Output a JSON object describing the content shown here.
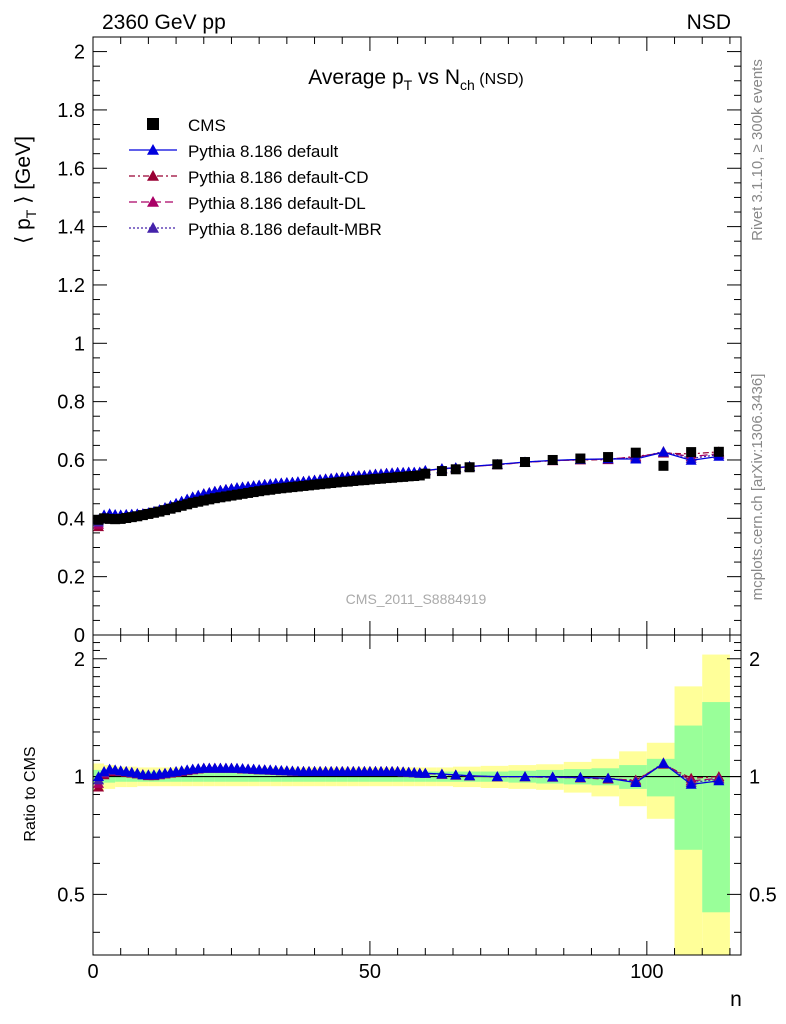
{
  "header": {
    "left": "2360 GeV pp",
    "right": "NSD"
  },
  "side_labels": {
    "rivet": "Rivet 3.1.10, ≥ 300k events",
    "mcplots": "mcplots.cern.ch [arXiv:1306.3436]"
  },
  "chart_data": {
    "type": "scatter",
    "title_main": "Average p",
    "title_sub1": "T",
    "title_mid": " vs N",
    "title_sub2": "ch",
    "title_tail": " (NSD)",
    "ylabel_pre": "⟨ p",
    "ylabel_sub": "T",
    "ylabel_post": " ⟩ [GeV]",
    "xlabel": "n",
    "ratio_ylabel": "Ratio to CMS",
    "watermark": "CMS_2011_S8884919",
    "xlim": [
      0,
      117
    ],
    "ylim": [
      0,
      2.05
    ],
    "x_ticks": [
      "0",
      "50",
      "100"
    ],
    "y_ticks": [
      "0",
      "0.2",
      "0.4",
      "0.6",
      "0.8",
      "1",
      "1.2",
      "1.4",
      "1.6",
      "1.8",
      "2"
    ],
    "ratio_ticks": [
      "0.5",
      "1",
      "2"
    ],
    "ratio_ylim": [
      0.35,
      2.3
    ],
    "colors": {
      "cms": "#000000",
      "default": "#0000dd",
      "cd": "#990033",
      "dl": "#aa0066",
      "mbr": "#4422aa",
      "band_inner": "#99ff99",
      "band_outer": "#ffff99"
    },
    "legend": [
      "CMS",
      "Pythia 8.186 default",
      "Pythia 8.186 default-CD",
      "Pythia 8.186 default-DL",
      "Pythia 8.186 default-MBR"
    ],
    "cms": {
      "x": [
        1,
        2,
        3,
        4,
        5,
        6,
        7,
        8,
        9,
        10,
        11,
        12,
        13,
        14,
        15,
        16,
        17,
        18,
        19,
        20,
        21,
        22,
        23,
        24,
        25,
        26,
        27,
        28,
        29,
        30,
        31,
        32,
        33,
        34,
        35,
        36,
        37,
        38,
        39,
        40,
        41,
        42,
        43,
        44,
        45,
        46,
        47,
        48,
        49,
        50,
        51,
        52,
        53,
        54,
        55,
        56,
        57,
        58,
        59,
        60,
        63,
        65.5,
        68,
        73,
        78,
        83,
        88,
        93,
        98,
        103,
        108,
        113
      ],
      "y": [
        0.395,
        0.4,
        0.398,
        0.397,
        0.398,
        0.401,
        0.404,
        0.407,
        0.411,
        0.415,
        0.419,
        0.423,
        0.428,
        0.433,
        0.438,
        0.443,
        0.448,
        0.453,
        0.457,
        0.461,
        0.465,
        0.469,
        0.472,
        0.475,
        0.478,
        0.481,
        0.484,
        0.487,
        0.49,
        0.493,
        0.496,
        0.498,
        0.501,
        0.503,
        0.505,
        0.507,
        0.509,
        0.511,
        0.513,
        0.515,
        0.517,
        0.519,
        0.521,
        0.523,
        0.525,
        0.526,
        0.528,
        0.53,
        0.531,
        0.533,
        0.535,
        0.536,
        0.538,
        0.539,
        0.541,
        0.542,
        0.544,
        0.545,
        0.547,
        0.553,
        0.562,
        0.568,
        0.575,
        0.585,
        0.593,
        0.6,
        0.605,
        0.61,
        0.625,
        0.58,
        0.627,
        0.628
      ]
    },
    "ratio_band": {
      "x_edges": [
        0,
        2,
        4,
        6,
        8,
        10,
        12,
        14,
        16,
        18,
        20,
        22,
        24,
        26,
        28,
        30,
        32,
        34,
        36,
        38,
        40,
        42,
        44,
        46,
        48,
        50,
        52,
        54,
        56,
        58,
        60,
        62,
        65,
        70,
        75,
        80,
        85,
        90,
        95,
        100,
        105,
        110,
        115
      ],
      "inner": [
        0.04,
        0.035,
        0.03,
        0.03,
        0.03,
        0.03,
        0.03,
        0.03,
        0.03,
        0.03,
        0.03,
        0.03,
        0.03,
        0.03,
        0.03,
        0.03,
        0.03,
        0.03,
        0.03,
        0.03,
        0.03,
        0.03,
        0.03,
        0.03,
        0.03,
        0.03,
        0.03,
        0.03,
        0.03,
        0.03,
        0.03,
        0.03,
        0.03,
        0.03,
        0.035,
        0.04,
        0.045,
        0.05,
        0.07,
        0.11,
        0.35,
        0.55
      ],
      "outer": [
        0.08,
        0.07,
        0.06,
        0.06,
        0.055,
        0.055,
        0.055,
        0.055,
        0.055,
        0.055,
        0.055,
        0.055,
        0.055,
        0.055,
        0.055,
        0.055,
        0.055,
        0.055,
        0.055,
        0.055,
        0.055,
        0.055,
        0.055,
        0.055,
        0.055,
        0.055,
        0.055,
        0.055,
        0.055,
        0.055,
        0.055,
        0.055,
        0.06,
        0.065,
        0.07,
        0.075,
        0.09,
        0.11,
        0.16,
        0.22,
        0.7,
        1.05
      ]
    },
    "pythia_ratio": {
      "x": [
        1,
        2,
        3,
        4,
        5,
        6,
        7,
        8,
        9,
        10,
        11,
        12,
        13,
        14,
        15,
        16,
        17,
        18,
        19,
        20,
        21,
        22,
        23,
        24,
        25,
        26,
        27,
        28,
        29,
        30,
        31,
        32,
        33,
        34,
        35,
        36,
        37,
        38,
        39,
        40,
        41,
        42,
        43,
        44,
        45,
        46,
        47,
        48,
        49,
        50,
        51,
        52,
        53,
        54,
        55,
        56,
        57,
        58,
        59,
        60,
        63,
        65.5,
        68,
        73,
        78,
        83,
        88,
        93,
        98,
        103,
        108,
        113
      ],
      "default": [
        1.0,
        1.03,
        1.045,
        1.04,
        1.035,
        1.03,
        1.025,
        1.02,
        1.01,
        1.01,
        1.01,
        1.015,
        1.02,
        1.025,
        1.03,
        1.035,
        1.04,
        1.045,
        1.048,
        1.05,
        1.05,
        1.05,
        1.05,
        1.05,
        1.05,
        1.05,
        1.048,
        1.045,
        1.045,
        1.042,
        1.04,
        1.04,
        1.038,
        1.036,
        1.035,
        1.033,
        1.032,
        1.03,
        1.03,
        1.03,
        1.03,
        1.03,
        1.03,
        1.03,
        1.03,
        1.03,
        1.03,
        1.03,
        1.03,
        1.03,
        1.03,
        1.03,
        1.03,
        1.03,
        1.03,
        1.028,
        1.026,
        1.024,
        1.02,
        1.02,
        1.015,
        1.01,
        1.005,
        1.0,
        1.0,
        0.998,
        0.995,
        0.99,
        0.965,
        1.08,
        0.955,
        0.975
      ],
      "cd": [
        0.94,
        1.01,
        1.03,
        1.03,
        1.03,
        1.025,
        1.02,
        1.015,
        1.01,
        1.005,
        1.005,
        1.01,
        1.015,
        1.02,
        1.025,
        1.03,
        1.035,
        1.04,
        1.045,
        1.05,
        1.05,
        1.05,
        1.05,
        1.05,
        1.05,
        1.048,
        1.045,
        1.045,
        1.043,
        1.04,
        1.04,
        1.038,
        1.036,
        1.035,
        1.033,
        1.032,
        1.03,
        1.03,
        1.03,
        1.03,
        1.03,
        1.03,
        1.03,
        1.03,
        1.03,
        1.03,
        1.03,
        1.03,
        1.03,
        1.03,
        1.03,
        1.03,
        1.03,
        1.03,
        1.03,
        1.027,
        1.025,
        1.022,
        1.02,
        1.018,
        1.013,
        1.008,
        1.003,
        0.998,
        0.998,
        0.996,
        0.992,
        0.985,
        0.98,
        1.075,
        0.99,
        1.0
      ],
      "dl": [
        0.96,
        1.02,
        1.035,
        1.035,
        1.03,
        1.028,
        1.023,
        1.018,
        1.012,
        1.008,
        1.008,
        1.012,
        1.018,
        1.022,
        1.028,
        1.032,
        1.038,
        1.042,
        1.046,
        1.05,
        1.05,
        1.05,
        1.05,
        1.05,
        1.05,
        1.048,
        1.046,
        1.044,
        1.042,
        1.04,
        1.04,
        1.038,
        1.036,
        1.034,
        1.033,
        1.031,
        1.03,
        1.03,
        1.03,
        1.03,
        1.03,
        1.03,
        1.03,
        1.03,
        1.03,
        1.03,
        1.03,
        1.03,
        1.03,
        1.03,
        1.03,
        1.03,
        1.03,
        1.03,
        1.03,
        1.027,
        1.025,
        1.023,
        1.02,
        1.018,
        1.013,
        1.008,
        1.003,
        0.998,
        0.998,
        0.996,
        0.993,
        0.99,
        0.975,
        1.08,
        0.975,
        0.99
      ],
      "mbr": [
        0.98,
        1.025,
        1.04,
        1.038,
        1.033,
        1.03,
        1.024,
        1.019,
        1.011,
        1.009,
        1.009,
        1.013,
        1.019,
        1.024,
        1.029,
        1.034,
        1.039,
        1.044,
        1.047,
        1.05,
        1.05,
        1.05,
        1.05,
        1.05,
        1.05,
        1.049,
        1.047,
        1.045,
        1.043,
        1.041,
        1.04,
        1.038,
        1.037,
        1.035,
        1.034,
        1.032,
        1.031,
        1.03,
        1.03,
        1.03,
        1.03,
        1.03,
        1.03,
        1.03,
        1.03,
        1.03,
        1.03,
        1.03,
        1.03,
        1.03,
        1.03,
        1.03,
        1.03,
        1.03,
        1.03,
        1.028,
        1.026,
        1.023,
        1.02,
        1.019,
        1.014,
        1.009,
        1.004,
        0.999,
        0.999,
        0.997,
        0.994,
        0.99,
        0.97,
        1.085,
        0.965,
        0.985
      ]
    }
  }
}
